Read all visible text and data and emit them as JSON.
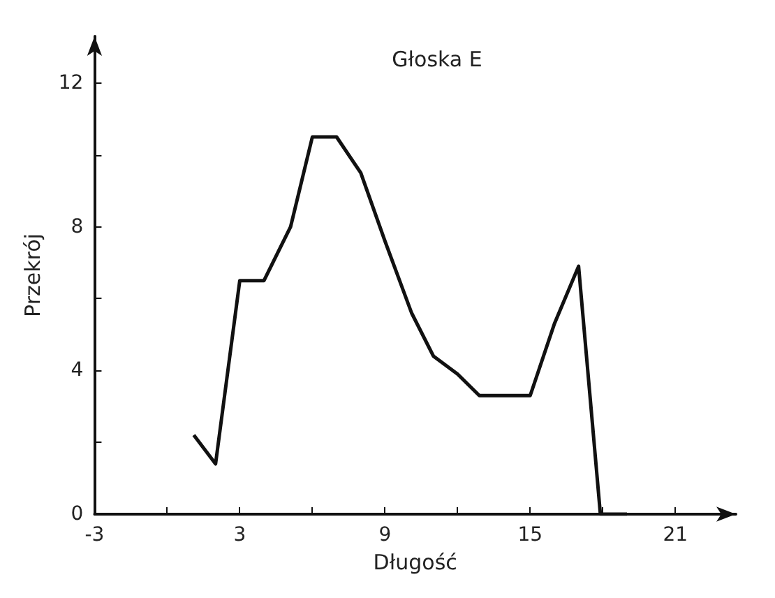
{
  "chart_data": {
    "type": "line",
    "title": "Głoska E",
    "xlabel": "Długość",
    "ylabel": "Przekrój",
    "x": [
      1.1,
      2,
      3,
      4,
      5.1,
      6,
      7,
      8,
      9,
      10.1,
      11,
      12,
      12.9,
      15,
      16,
      17,
      17.9,
      19
    ],
    "series": [
      {
        "color": "#111111",
        "values": [
          2.2,
          1.4,
          6.5,
          6.5,
          8,
          10.5,
          10.5,
          9.5,
          7.6,
          5.6,
          4.4,
          3.9,
          3.3,
          3.3,
          5.3,
          6.9,
          0,
          0
        ]
      }
    ],
    "xlim": [
      -3,
      23.5
    ],
    "ylim": [
      0,
      13.3
    ],
    "xticks": [
      -3,
      {
        "value": 0,
        "label": null
      },
      3,
      {
        "value": 6,
        "label": null
      },
      9,
      {
        "value": 12,
        "label": null
      },
      15,
      {
        "value": 18,
        "label": null
      },
      21
    ],
    "yticks": [
      0,
      {
        "value": 2,
        "label": null
      },
      4,
      {
        "value": 6,
        "label": null
      },
      8,
      {
        "value": 10,
        "label": null
      },
      12
    ],
    "grid": false,
    "marker": "none",
    "line_style": "solid"
  }
}
